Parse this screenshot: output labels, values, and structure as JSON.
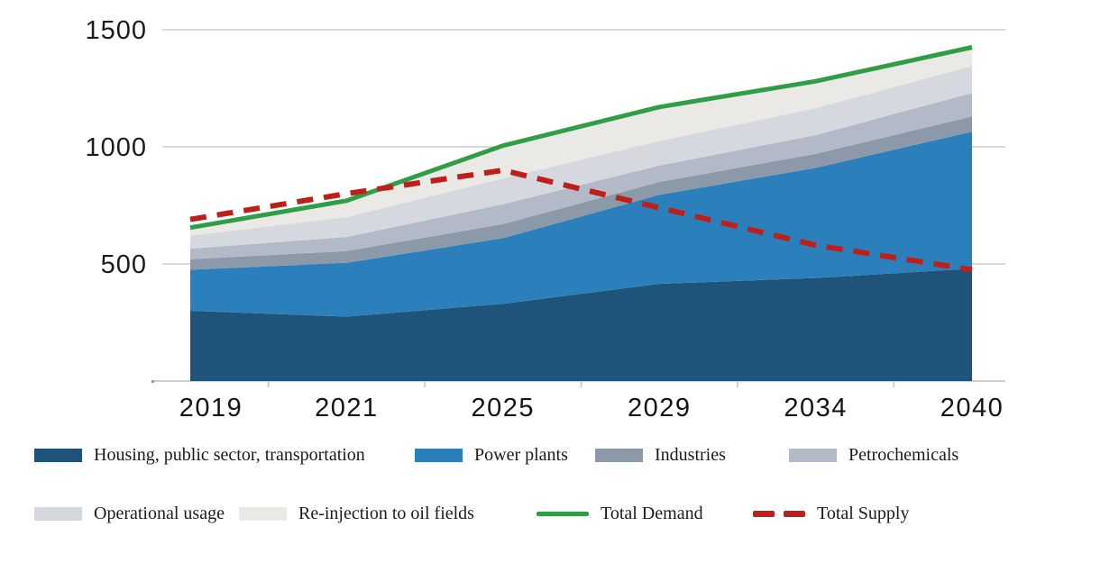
{
  "chart_data": {
    "type": "area",
    "title": "",
    "xlabel": "",
    "ylabel": "",
    "categories": [
      "2019",
      "2021",
      "2025",
      "2029",
      "2034",
      "2040"
    ],
    "y_ticks": [
      "500",
      "1000",
      "1500"
    ],
    "y_tick_values": [
      500,
      1000,
      1500
    ],
    "ylim": [
      0,
      1500
    ],
    "grid": true,
    "legend_position": "bottom",
    "series": [
      {
        "name": "Housing, public sector, transportation",
        "type": "area",
        "color": "#20537a",
        "values": [
          300,
          275,
          330,
          415,
          440,
          480
        ]
      },
      {
        "name": "Power plants",
        "type": "area",
        "color": "#2b80bc",
        "values": [
          175,
          230,
          280,
          380,
          470,
          585
        ]
      },
      {
        "name": "Industries",
        "type": "area",
        "color": "#8c99a9",
        "values": [
          45,
          50,
          60,
          55,
          60,
          65
        ]
      },
      {
        "name": "Petrochemicals",
        "type": "area",
        "color": "#b3bac7",
        "values": [
          45,
          60,
          85,
          70,
          80,
          100
        ]
      },
      {
        "name": "Operational usage",
        "type": "area",
        "color": "#d5d8de",
        "values": [
          55,
          85,
          110,
          105,
          115,
          115
        ]
      },
      {
        "name": "Re-injection to oil fields",
        "type": "area",
        "color": "#eae9e5",
        "values": [
          35,
          70,
          140,
          145,
          115,
          80
        ]
      },
      {
        "name": "Total Demand",
        "type": "line",
        "style": "solid",
        "color": "#2f9e47",
        "values": [
          655,
          770,
          1005,
          1170,
          1280,
          1425
        ]
      },
      {
        "name": "Total Supply",
        "type": "line",
        "style": "dashed",
        "color": "#bf1f1a",
        "values": [
          690,
          800,
          900,
          740,
          580,
          475
        ]
      }
    ],
    "colors": {
      "grid": "#d9d9d9",
      "axis_text": "#1c1c1c",
      "demand_green": "#2f9e47",
      "supply_red": "#bf1f1a"
    }
  }
}
